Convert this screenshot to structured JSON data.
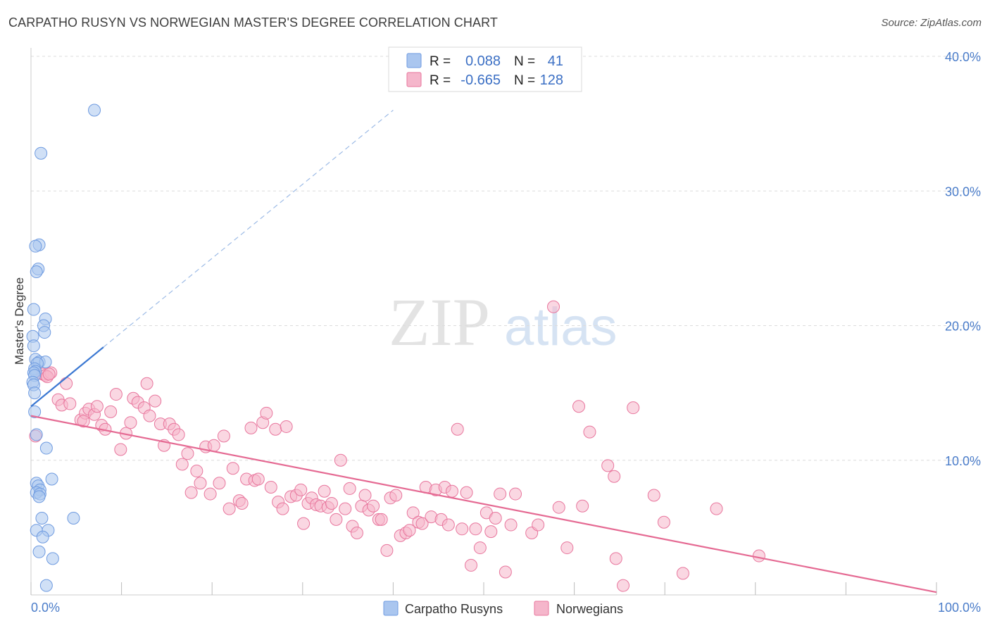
{
  "header": {
    "title": "CARPATHO RUSYN VS NORWEGIAN MASTER'S DEGREE CORRELATION CHART",
    "source": "Source: ZipAtlas.com"
  },
  "watermark": {
    "zip": "ZIP",
    "atlas": "atlas"
  },
  "chart_data": {
    "type": "scatter",
    "title": "CARPATHO RUSYN VS NORWEGIAN MASTER'S DEGREE CORRELATION CHART",
    "ylabel": "Master's Degree",
    "xlabel": "",
    "xlim": [
      0,
      100
    ],
    "ylim": [
      0,
      40
    ],
    "x_tick_labels": [
      "0.0%",
      "100.0%"
    ],
    "y_ticks": [
      10,
      20,
      30,
      40
    ],
    "y_tick_labels": [
      "10.0%",
      "20.0%",
      "30.0%",
      "40.0%"
    ],
    "grid": true,
    "legend_position": "top-center",
    "stats": [
      {
        "r_label": "R =",
        "r": "0.088",
        "n_label": "N =",
        "n": "41"
      },
      {
        "r_label": "R =",
        "r": "-0.665",
        "n_label": "N =",
        "n": "128"
      }
    ],
    "series": [
      {
        "name": "Carpatho Rusyns",
        "color": "#6f9be0",
        "fill": "#aac6ef",
        "trend": {
          "x0": 0,
          "y0": 14.0,
          "x1": 8,
          "y1": 18.4,
          "dashed_to_x": 40,
          "dashed_to_y": 36.0
        },
        "points": [
          [
            7,
            36
          ],
          [
            1.1,
            32.8
          ],
          [
            0.9,
            26
          ],
          [
            0.5,
            25.9
          ],
          [
            0.8,
            24.2
          ],
          [
            0.6,
            24.0
          ],
          [
            0.3,
            21.2
          ],
          [
            1.6,
            20.5
          ],
          [
            1.4,
            20.0
          ],
          [
            1.5,
            19.5
          ],
          [
            0.2,
            19.2
          ],
          [
            0.3,
            18.5
          ],
          [
            0.5,
            17.5
          ],
          [
            0.9,
            17.3
          ],
          [
            1.6,
            17.3
          ],
          [
            0.7,
            17.2
          ],
          [
            0.4,
            16.8
          ],
          [
            0.5,
            16.6
          ],
          [
            0.3,
            16.5
          ],
          [
            0.4,
            16.3
          ],
          [
            0.2,
            15.8
          ],
          [
            0.3,
            15.6
          ],
          [
            0.4,
            15.0
          ],
          [
            0.4,
            13.6
          ],
          [
            0.6,
            11.9
          ],
          [
            1.7,
            10.9
          ],
          [
            2.3,
            8.6
          ],
          [
            0.6,
            8.3
          ],
          [
            0.8,
            8.1
          ],
          [
            1.0,
            7.8
          ],
          [
            0.6,
            7.6
          ],
          [
            1.0,
            7.5
          ],
          [
            0.9,
            7.3
          ],
          [
            1.2,
            5.7
          ],
          [
            4.7,
            5.7
          ],
          [
            0.6,
            4.8
          ],
          [
            1.9,
            4.8
          ],
          [
            1.3,
            4.3
          ],
          [
            0.9,
            3.2
          ],
          [
            2.4,
            2.7
          ],
          [
            1.7,
            0.7
          ]
        ]
      },
      {
        "name": "Norwegians",
        "color": "#e8769d",
        "fill": "#f5b6cb",
        "trend": {
          "x0": 0,
          "y0": 13.3,
          "x1": 100,
          "y1": 0.2
        },
        "points": [
          [
            0.5,
            11.8
          ],
          [
            1.3,
            16.4
          ],
          [
            1.6,
            16.3
          ],
          [
            2.2,
            16.5
          ],
          [
            1.8,
            16.2
          ],
          [
            2.0,
            16.4
          ],
          [
            3.9,
            15.7
          ],
          [
            3.0,
            14.5
          ],
          [
            3.4,
            14.1
          ],
          [
            4.3,
            14.2
          ],
          [
            5.5,
            13.0
          ],
          [
            6.0,
            13.5
          ],
          [
            5.8,
            12.9
          ],
          [
            6.4,
            13.8
          ],
          [
            7.0,
            13.4
          ],
          [
            7.3,
            14.0
          ],
          [
            7.8,
            12.6
          ],
          [
            8.2,
            12.3
          ],
          [
            8.8,
            13.6
          ],
          [
            9.4,
            14.9
          ],
          [
            9.9,
            10.8
          ],
          [
            10.5,
            12.0
          ],
          [
            11.0,
            12.8
          ],
          [
            11.3,
            14.6
          ],
          [
            11.8,
            14.3
          ],
          [
            12.5,
            13.9
          ],
          [
            12.8,
            15.7
          ],
          [
            13.1,
            13.3
          ],
          [
            13.7,
            14.4
          ],
          [
            14.3,
            12.7
          ],
          [
            14.7,
            11.1
          ],
          [
            15.3,
            12.7
          ],
          [
            15.8,
            12.3
          ],
          [
            16.3,
            11.9
          ],
          [
            16.7,
            9.7
          ],
          [
            17.3,
            10.5
          ],
          [
            17.7,
            7.6
          ],
          [
            18.3,
            9.2
          ],
          [
            18.7,
            8.3
          ],
          [
            19.3,
            11.0
          ],
          [
            19.8,
            7.5
          ],
          [
            20.2,
            11.1
          ],
          [
            20.8,
            8.3
          ],
          [
            21.3,
            11.8
          ],
          [
            21.9,
            6.4
          ],
          [
            22.3,
            9.4
          ],
          [
            23.0,
            7.0
          ],
          [
            23.3,
            6.8
          ],
          [
            23.8,
            8.6
          ],
          [
            24.3,
            12.4
          ],
          [
            24.7,
            8.5
          ],
          [
            25.1,
            8.6
          ],
          [
            25.6,
            12.8
          ],
          [
            26.0,
            13.5
          ],
          [
            26.5,
            8.0
          ],
          [
            27.0,
            12.3
          ],
          [
            27.3,
            6.9
          ],
          [
            27.8,
            6.4
          ],
          [
            28.2,
            12.5
          ],
          [
            28.7,
            7.3
          ],
          [
            29.3,
            7.4
          ],
          [
            29.8,
            7.8
          ],
          [
            30.1,
            5.3
          ],
          [
            30.6,
            6.8
          ],
          [
            31.0,
            7.2
          ],
          [
            31.5,
            6.7
          ],
          [
            32.0,
            6.6
          ],
          [
            32.4,
            7.7
          ],
          [
            32.8,
            6.5
          ],
          [
            33.2,
            6.8
          ],
          [
            33.7,
            5.6
          ],
          [
            34.2,
            10.0
          ],
          [
            34.7,
            6.4
          ],
          [
            35.2,
            7.9
          ],
          [
            35.5,
            5.1
          ],
          [
            36.0,
            4.6
          ],
          [
            36.5,
            6.6
          ],
          [
            36.9,
            7.4
          ],
          [
            37.3,
            6.3
          ],
          [
            37.8,
            6.6
          ],
          [
            38.4,
            5.6
          ],
          [
            38.7,
            5.6
          ],
          [
            39.3,
            3.3
          ],
          [
            39.7,
            7.2
          ],
          [
            40.3,
            7.4
          ],
          [
            40.8,
            4.4
          ],
          [
            41.4,
            4.6
          ],
          [
            41.8,
            4.8
          ],
          [
            42.2,
            6.1
          ],
          [
            42.8,
            5.4
          ],
          [
            43.2,
            5.3
          ],
          [
            43.6,
            8.0
          ],
          [
            44.2,
            5.8
          ],
          [
            44.7,
            7.8
          ],
          [
            45.3,
            5.6
          ],
          [
            45.7,
            8.0
          ],
          [
            46.1,
            5.2
          ],
          [
            46.5,
            7.7
          ],
          [
            47.1,
            12.3
          ],
          [
            47.6,
            4.9
          ],
          [
            48.1,
            7.6
          ],
          [
            48.6,
            2.2
          ],
          [
            49.1,
            4.9
          ],
          [
            49.6,
            3.5
          ],
          [
            50.3,
            6.1
          ],
          [
            50.8,
            4.7
          ],
          [
            51.3,
            5.7
          ],
          [
            51.8,
            7.5
          ],
          [
            52.4,
            1.7
          ],
          [
            53.0,
            5.2
          ],
          [
            53.5,
            7.5
          ],
          [
            55.3,
            4.6
          ],
          [
            56.0,
            5.2
          ],
          [
            57.7,
            21.4
          ],
          [
            58.3,
            6.5
          ],
          [
            59.2,
            3.5
          ],
          [
            60.5,
            14.0
          ],
          [
            60.9,
            6.6
          ],
          [
            61.7,
            12.1
          ],
          [
            63.7,
            9.6
          ],
          [
            64.4,
            8.8
          ],
          [
            64.6,
            2.7
          ],
          [
            65.4,
            0.7
          ],
          [
            66.5,
            13.9
          ],
          [
            68.8,
            7.4
          ],
          [
            69.9,
            5.4
          ],
          [
            72.0,
            1.6
          ],
          [
            75.7,
            6.4
          ],
          [
            80.4,
            2.9
          ]
        ]
      }
    ]
  },
  "legend_bottom": [
    {
      "label": "Carpatho Rusyns"
    },
    {
      "label": "Norwegians"
    }
  ],
  "colors": {
    "blue_marker": "#aac6ef",
    "blue_stroke": "#6f9be0",
    "blue_line": "#3b78d2",
    "pink_marker": "#f5b6cb",
    "pink_stroke": "#e8769d",
    "pink_line": "#e56a93",
    "tick_text": "#4a7cc9",
    "grid": "#dcdcdc"
  }
}
